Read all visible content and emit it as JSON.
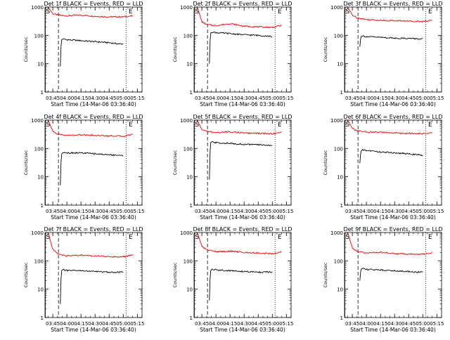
{
  "chart_data": [
    {
      "type": "line",
      "title": "Det 1f BLACK = Events, RED = LLD",
      "xlabel": "Start Time (14-Mar-06 03:36:40)",
      "ylabel": "Counts/sec",
      "y_scale": "log",
      "ylim": [
        1,
        1000
      ],
      "y_ticks": [
        "1",
        "10",
        "100",
        "1000"
      ],
      "x_ticks": [
        "03:45",
        "04:00",
        "04:15",
        "04:30",
        "04:45",
        "05:00",
        "05:15"
      ],
      "markers": [
        {
          "label": "S",
          "time": "03:37"
        },
        {
          "label": "E",
          "time": "05:05"
        }
      ],
      "dashed_line_time": "03:51",
      "dotted_line_time": "05:03",
      "series": [
        {
          "color": "#ff0000",
          "x": [
            "03:40",
            "03:45",
            "03:50",
            "04:00",
            "04:15",
            "04:30",
            "04:45",
            "05:00",
            "05:05",
            "05:10"
          ],
          "y": [
            1000,
            580,
            520,
            490,
            520,
            470,
            450,
            450,
            470,
            480
          ]
        },
        {
          "color": "#000000",
          "x": [
            "03:53",
            "03:54",
            "03:56",
            "04:00",
            "04:15",
            "04:30",
            "04:45",
            "04:55",
            "05:00"
          ],
          "y": [
            8,
            70,
            75,
            70,
            65,
            60,
            55,
            50,
            50
          ]
        }
      ]
    },
    {
      "type": "line",
      "title": "Det 2f BLACK = Events, RED = LLD",
      "xlabel": "Start Time (14-Mar-06 03:36:40)",
      "ylabel": "Counts/sec",
      "y_scale": "log",
      "ylim": [
        1,
        1000
      ],
      "y_ticks": [
        "1",
        "10",
        "100",
        "1000"
      ],
      "x_ticks": [
        "03:45",
        "04:00",
        "04:15",
        "04:30",
        "04:45",
        "05:00",
        "05:15"
      ],
      "markers": [
        {
          "label": "S",
          "time": "03:37"
        },
        {
          "label": "E",
          "time": "05:05"
        }
      ],
      "dashed_line_time": "03:51",
      "dotted_line_time": "05:03",
      "series": [
        {
          "color": "#ff0000",
          "x": [
            "03:40",
            "03:45",
            "03:50",
            "04:00",
            "04:15",
            "04:30",
            "04:45",
            "05:00",
            "05:05",
            "05:10"
          ],
          "y": [
            1000,
            300,
            240,
            220,
            260,
            210,
            200,
            190,
            210,
            220
          ]
        },
        {
          "color": "#000000",
          "x": [
            "03:53",
            "03:54",
            "03:56",
            "04:00",
            "04:15",
            "04:30",
            "04:45",
            "04:55",
            "05:00"
          ],
          "y": [
            10,
            120,
            130,
            125,
            115,
            105,
            100,
            95,
            90
          ]
        }
      ]
    },
    {
      "type": "line",
      "title": "Det 3f BLACK = Events, RED = LLD",
      "xlabel": "Start Time (14-Mar-06 03:36:40)",
      "ylabel": "Counts/sec",
      "y_scale": "log",
      "ylim": [
        1,
        1000
      ],
      "y_ticks": [
        "1",
        "10",
        "100",
        "1000"
      ],
      "x_ticks": [
        "03:45",
        "04:00",
        "04:15",
        "04:30",
        "04:45",
        "05:00",
        "05:15"
      ],
      "markers": [
        {
          "label": "S",
          "time": "03:37"
        },
        {
          "label": "E",
          "time": "05:05"
        }
      ],
      "dashed_line_time": "03:51",
      "dotted_line_time": "05:03",
      "series": [
        {
          "color": "#ff0000",
          "x": [
            "03:40",
            "03:45",
            "03:50",
            "04:00",
            "04:15",
            "04:30",
            "04:45",
            "05:00",
            "05:05",
            "05:10"
          ],
          "y": [
            1000,
            520,
            420,
            360,
            340,
            330,
            320,
            310,
            320,
            340
          ]
        },
        {
          "color": "#000000",
          "x": [
            "03:53",
            "03:54",
            "03:56",
            "04:00",
            "04:15",
            "04:30",
            "04:45",
            "04:55",
            "05:00"
          ],
          "y": [
            40,
            90,
            95,
            90,
            85,
            80,
            78,
            75,
            75
          ]
        }
      ]
    },
    {
      "type": "line",
      "title": "Det 4f BLACK = Events, RED = LLD",
      "xlabel": "Start Time (14-Mar-06 03:36:40)",
      "ylabel": "Counts/sec",
      "y_scale": "log",
      "ylim": [
        1,
        1000
      ],
      "y_ticks": [
        "1",
        "10",
        "100",
        "1000"
      ],
      "x_ticks": [
        "03:45",
        "04:00",
        "04:15",
        "04:30",
        "04:45",
        "05:00",
        "05:15"
      ],
      "markers": [
        {
          "label": "S",
          "time": "03:37"
        },
        {
          "label": "E",
          "time": "05:05"
        }
      ],
      "dashed_line_time": "03:51",
      "dotted_line_time": "05:03",
      "series": [
        {
          "color": "#ff0000",
          "x": [
            "03:40",
            "03:45",
            "03:50",
            "04:00",
            "04:15",
            "04:30",
            "04:45",
            "05:00",
            "05:05",
            "05:10"
          ],
          "y": [
            1000,
            400,
            320,
            290,
            300,
            290,
            280,
            270,
            290,
            320
          ]
        },
        {
          "color": "#000000",
          "x": [
            "03:53",
            "03:54",
            "03:56",
            "04:00",
            "04:15",
            "04:30",
            "04:45",
            "04:55",
            "05:00"
          ],
          "y": [
            5,
            60,
            75,
            70,
            70,
            65,
            60,
            58,
            55
          ]
        }
      ]
    },
    {
      "type": "line",
      "title": "Det 5f BLACK = Events, RED = LLD",
      "xlabel": "Start Time (14-Mar-06 03:36:40)",
      "ylabel": "Counts/sec",
      "y_scale": "log",
      "ylim": [
        1,
        1000
      ],
      "y_ticks": [
        "1",
        "10",
        "100",
        "1000"
      ],
      "x_ticks": [
        "03:45",
        "04:00",
        "04:15",
        "04:30",
        "04:45",
        "05:00",
        "05:15"
      ],
      "markers": [
        {
          "label": "S",
          "time": "03:37"
        },
        {
          "label": "E",
          "time": "05:05"
        }
      ],
      "dashed_line_time": "03:51",
      "dotted_line_time": "05:03",
      "series": [
        {
          "color": "#ff0000",
          "x": [
            "03:40",
            "03:45",
            "03:50",
            "04:00",
            "04:15",
            "04:30",
            "04:45",
            "05:00",
            "05:05",
            "05:10"
          ],
          "y": [
            1000,
            470,
            400,
            360,
            390,
            350,
            340,
            330,
            350,
            380
          ]
        },
        {
          "color": "#000000",
          "x": [
            "03:53",
            "03:54",
            "03:56",
            "04:00",
            "04:15",
            "04:30",
            "04:45",
            "04:55",
            "05:00"
          ],
          "y": [
            8,
            160,
            170,
            160,
            150,
            140,
            135,
            130,
            130
          ]
        }
      ]
    },
    {
      "type": "line",
      "title": "Det 6f BLACK = Events, RED = LLD",
      "xlabel": "Start Time (14-Mar-06 03:36:40)",
      "ylabel": "Counts/sec",
      "y_scale": "log",
      "ylim": [
        1,
        1000
      ],
      "y_ticks": [
        "1",
        "10",
        "100",
        "1000"
      ],
      "x_ticks": [
        "03:45",
        "04:00",
        "04:15",
        "04:30",
        "04:45",
        "05:00",
        "05:15"
      ],
      "markers": [
        {
          "label": "S",
          "time": "03:37"
        },
        {
          "label": "E",
          "time": "05:05"
        }
      ],
      "dashed_line_time": "03:51",
      "dotted_line_time": "05:03",
      "series": [
        {
          "color": "#ff0000",
          "x": [
            "03:40",
            "03:45",
            "03:50",
            "04:00",
            "04:15",
            "04:30",
            "04:45",
            "05:00",
            "05:05",
            "05:10"
          ],
          "y": [
            1000,
            500,
            420,
            380,
            370,
            350,
            340,
            330,
            340,
            360
          ]
        },
        {
          "color": "#000000",
          "x": [
            "03:53",
            "03:54",
            "03:56",
            "04:00",
            "04:15",
            "04:30",
            "04:45",
            "04:55",
            "05:00"
          ],
          "y": [
            30,
            80,
            90,
            85,
            75,
            70,
            65,
            60,
            55
          ]
        }
      ]
    },
    {
      "type": "line",
      "title": "Det 7f BLACK = Events, RED = LLD",
      "xlabel": "Start Time (14-Mar-06 03:36:40)",
      "ylabel": "Counts/sec",
      "y_scale": "log",
      "ylim": [
        1,
        1000
      ],
      "y_ticks": [
        "1",
        "10",
        "100",
        "1000"
      ],
      "x_ticks": [
        "03:45",
        "04:00",
        "04:15",
        "04:30",
        "04:45",
        "05:00",
        "05:15"
      ],
      "markers": [
        {
          "label": "S",
          "time": "03:37"
        },
        {
          "label": "E",
          "time": "05:05"
        }
      ],
      "dashed_line_time": "03:51",
      "dotted_line_time": "05:03",
      "series": [
        {
          "color": "#ff0000",
          "x": [
            "03:40",
            "03:45",
            "03:50",
            "04:00",
            "04:15",
            "04:30",
            "04:45",
            "05:00",
            "05:05",
            "05:10"
          ],
          "y": [
            1000,
            250,
            180,
            150,
            160,
            150,
            140,
            140,
            150,
            160
          ]
        },
        {
          "color": "#000000",
          "x": [
            "03:53",
            "03:54",
            "03:56",
            "04:00",
            "04:15",
            "04:30",
            "04:45",
            "04:55",
            "05:00"
          ],
          "y": [
            3,
            45,
            50,
            45,
            45,
            42,
            40,
            40,
            40
          ]
        }
      ]
    },
    {
      "type": "line",
      "title": "Det 8f BLACK = Events, RED = LLD",
      "xlabel": "Start Time (14-Mar-06 03:36:40)",
      "ylabel": "Counts/sec",
      "y_scale": "log",
      "ylim": [
        1,
        1000
      ],
      "y_ticks": [
        "1",
        "10",
        "100",
        "1000"
      ],
      "x_ticks": [
        "03:45",
        "04:00",
        "04:15",
        "04:30",
        "04:45",
        "05:00",
        "05:15"
      ],
      "markers": [
        {
          "label": "S",
          "time": "03:37"
        },
        {
          "label": "E",
          "time": "05:05"
        }
      ],
      "dashed_line_time": "03:51",
      "dotted_line_time": "05:03",
      "series": [
        {
          "color": "#ff0000",
          "x": [
            "03:40",
            "03:45",
            "03:50",
            "04:00",
            "04:15",
            "04:30",
            "04:45",
            "05:00",
            "05:05",
            "05:10"
          ],
          "y": [
            1000,
            320,
            250,
            210,
            220,
            200,
            190,
            180,
            190,
            210
          ]
        },
        {
          "color": "#000000",
          "x": [
            "03:53",
            "03:54",
            "03:56",
            "04:00",
            "04:15",
            "04:30",
            "04:45",
            "04:55",
            "05:00"
          ],
          "y": [
            4,
            45,
            50,
            48,
            45,
            42,
            40,
            40,
            40
          ]
        }
      ]
    },
    {
      "type": "line",
      "title": "Det 9f BLACK = Events, RED = LLD",
      "xlabel": "Start Time (14-Mar-06 03:36:40)",
      "ylabel": "Counts/sec",
      "y_scale": "log",
      "ylim": [
        1,
        1000
      ],
      "y_ticks": [
        "1",
        "10",
        "100",
        "1000"
      ],
      "x_ticks": [
        "03:45",
        "04:00",
        "04:15",
        "04:30",
        "04:45",
        "05:00",
        "05:15"
      ],
      "markers": [
        {
          "label": "S",
          "time": "03:37"
        },
        {
          "label": "E",
          "time": "05:05"
        }
      ],
      "dashed_line_time": "03:51",
      "dotted_line_time": "05:03",
      "series": [
        {
          "color": "#ff0000",
          "x": [
            "03:40",
            "03:45",
            "03:50",
            "04:00",
            "04:15",
            "04:30",
            "04:45",
            "05:00",
            "05:05",
            "05:10"
          ],
          "y": [
            1000,
            280,
            210,
            190,
            200,
            180,
            175,
            170,
            180,
            200
          ]
        },
        {
          "color": "#000000",
          "x": [
            "03:53",
            "03:54",
            "03:56",
            "04:00",
            "04:15",
            "04:30",
            "04:45",
            "04:55",
            "05:00"
          ],
          "y": [
            20,
            50,
            55,
            50,
            48,
            45,
            42,
            40,
            40
          ]
        }
      ]
    }
  ]
}
